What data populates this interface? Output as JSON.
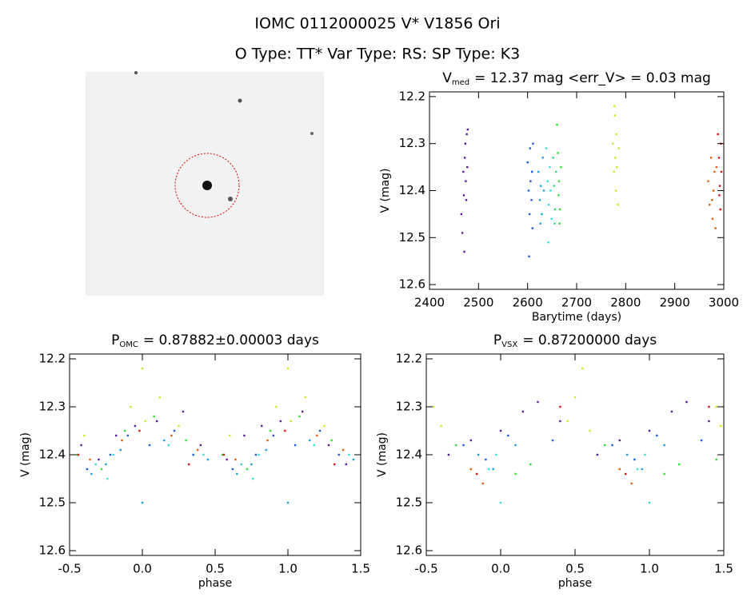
{
  "header": {
    "title": "IOMC 0112000025    V* V1856 Ori",
    "subtitle": "O Type: TT*   Var Type: RS:   SP Type: K3"
  },
  "chart_data": [
    {
      "type": "scatter",
      "title": "V",
      "title_sub": "med",
      "title_rest": "= 12.37 mag <err_V> = 0.03 mag",
      "x_label": "Barytime (days)",
      "y_label": "V (mag)",
      "xlim": [
        2400,
        3000
      ],
      "xticks": [
        2400,
        2500,
        2600,
        2700,
        2800,
        2900,
        3000
      ],
      "ylim": [
        12.61,
        12.19
      ],
      "yticks": [
        12.2,
        12.3,
        12.4,
        12.5,
        12.6
      ],
      "series": [
        {
          "color": "#5a1a9a",
          "x": [
            2465,
            2467,
            2469,
            2470,
            2472,
            2473,
            2474,
            2475,
            2476,
            2477,
            2478,
            2471
          ],
          "y": [
            12.45,
            12.49,
            12.36,
            12.41,
            12.33,
            12.3,
            12.38,
            12.42,
            12.28,
            12.35,
            12.27,
            12.53
          ]
        },
        {
          "color": "#1a5adc",
          "x": [
            2600,
            2602,
            2604,
            2605,
            2606,
            2608,
            2609,
            2610,
            2611,
            2603
          ],
          "y": [
            12.34,
            12.4,
            12.45,
            12.31,
            12.38,
            12.42,
            12.36,
            12.48,
            12.3,
            12.54
          ]
        },
        {
          "color": "#1aa0e0",
          "x": [
            2622,
            2625,
            2627,
            2629,
            2631,
            2633,
            2626
          ],
          "y": [
            12.36,
            12.42,
            12.39,
            12.45,
            12.33,
            12.4,
            12.47
          ]
        },
        {
          "color": "#30e0e0",
          "x": [
            2638,
            2641,
            2643,
            2645,
            2647,
            2649,
            2642
          ],
          "y": [
            12.31,
            12.38,
            12.43,
            12.35,
            12.4,
            12.46,
            12.51
          ]
        },
        {
          "color": "#2add80",
          "x": [
            2652,
            2654,
            2656,
            2658,
            2655
          ],
          "y": [
            12.33,
            12.39,
            12.44,
            12.36,
            12.47
          ]
        },
        {
          "color": "#30e030",
          "x": [
            2660,
            2662,
            2664,
            2666,
            2668,
            2663,
            2665
          ],
          "y": [
            12.26,
            12.32,
            12.38,
            12.44,
            12.35,
            12.41,
            12.47
          ]
        },
        {
          "color": "#c0f020",
          "x": [
            2774,
            2776,
            2778,
            2779,
            2780,
            2781,
            2782,
            2784,
            2786,
            2777
          ],
          "y": [
            12.3,
            12.36,
            12.24,
            12.33,
            12.4,
            12.28,
            12.35,
            12.43,
            12.31,
            12.22
          ]
        },
        {
          "color": "#e06010",
          "x": [
            2968,
            2971,
            2974,
            2977,
            2979,
            2981,
            2983,
            2985,
            2976
          ],
          "y": [
            12.38,
            12.43,
            12.33,
            12.46,
            12.4,
            12.36,
            12.48,
            12.35,
            12.42
          ]
        },
        {
          "color": "#e01010",
          "x": [
            2988,
            2990,
            2992,
            2993,
            2995,
            2991,
            2994
          ],
          "y": [
            12.28,
            12.33,
            12.39,
            12.44,
            12.36,
            12.41,
            12.3
          ]
        }
      ]
    },
    {
      "type": "scatter",
      "title": "P",
      "title_sub": "OMC",
      "title_rest": "= 0.87882±0.00003 days",
      "x_label": "phase",
      "y_label": "V (mag)",
      "xlim": [
        -0.5,
        1.5
      ],
      "xticks": [
        -0.5,
        {
          "value": 0,
          "label": "0.0"
        },
        0.5,
        {
          "value": 1,
          "label": "1.0"
        },
        1.5
      ],
      "ylim": [
        12.61,
        12.19
      ],
      "yticks": [
        12.2,
        12.3,
        12.4,
        12.5,
        12.6
      ],
      "series": [
        {
          "color": "#5a1a9a",
          "x": [
            -0.42,
            -0.3,
            -0.18,
            -0.05,
            0.1,
            0.28,
            0.4,
            0.58,
            0.7,
            0.82,
            0.95,
            1.1,
            1.28,
            1.4
          ],
          "y": [
            12.38,
            12.41,
            12.36,
            12.34,
            12.33,
            12.31,
            12.38,
            12.41,
            12.36,
            12.34,
            12.33,
            12.31,
            12.38,
            12.42
          ]
        },
        {
          "color": "#1a5adc",
          "x": [
            -0.38,
            -0.22,
            -0.1,
            0.05,
            0.22,
            0.35,
            0.62,
            0.78,
            0.9,
            1.05,
            1.22,
            1.35
          ],
          "y": [
            12.43,
            12.4,
            12.36,
            12.38,
            12.35,
            12.4,
            12.43,
            12.4,
            12.36,
            12.38,
            12.35,
            12.4
          ]
        },
        {
          "color": "#1aa0e0",
          "x": [
            -0.35,
            -0.25,
            -0.15,
            0.0,
            0.15,
            0.45,
            0.65,
            0.75,
            0.85,
            1.0,
            1.15,
            1.45
          ],
          "y": [
            12.44,
            12.42,
            12.39,
            12.5,
            12.37,
            12.41,
            12.44,
            12.42,
            12.39,
            12.5,
            12.37,
            12.41
          ]
        },
        {
          "color": "#30e0e0",
          "x": [
            -0.32,
            -0.24,
            -0.2,
            0.18,
            0.42,
            0.68,
            0.76,
            0.8,
            1.18,
            1.42
          ],
          "y": [
            12.42,
            12.45,
            12.4,
            12.38,
            12.4,
            12.42,
            12.45,
            12.4,
            12.38,
            12.4
          ]
        },
        {
          "color": "#30e030",
          "x": [
            -0.45,
            -0.28,
            -0.12,
            0.08,
            0.3,
            0.55,
            0.72,
            0.88,
            1.08,
            1.3
          ],
          "y": [
            12.4,
            12.43,
            12.35,
            12.32,
            12.37,
            12.4,
            12.43,
            12.35,
            12.32,
            12.37
          ]
        },
        {
          "color": "#c0f020",
          "x": [
            -0.4,
            -0.08,
            0.0,
            0.02,
            0.12,
            0.25,
            0.6,
            0.92,
            1.0,
            1.02,
            1.12,
            1.25
          ],
          "y": [
            12.36,
            12.3,
            12.22,
            12.33,
            12.28,
            12.34,
            12.36,
            12.3,
            12.22,
            12.33,
            12.28,
            12.34
          ]
        },
        {
          "color": "#e06010",
          "x": [
            -0.36,
            -0.14,
            0.2,
            0.38,
            0.64,
            0.86,
            1.2,
            1.38
          ],
          "y": [
            12.41,
            12.37,
            12.36,
            12.39,
            12.41,
            12.37,
            12.36,
            12.39
          ]
        },
        {
          "color": "#e01010",
          "x": [
            -0.44,
            -0.02,
            0.32,
            0.56,
            0.98,
            1.32
          ],
          "y": [
            12.4,
            12.35,
            12.42,
            12.4,
            12.35,
            12.42
          ]
        }
      ]
    },
    {
      "type": "scatter",
      "title": "P",
      "title_sub": "VSX",
      "title_rest": "= 0.87200000 days",
      "x_label": "phase",
      "y_label": "V (mag)",
      "xlim": [
        -0.5,
        1.5
      ],
      "xticks": [
        -0.5,
        {
          "value": 0,
          "label": "0.0"
        },
        0.5,
        {
          "value": 1,
          "label": "1.0"
        },
        1.5
      ],
      "ylim": [
        12.61,
        12.19
      ],
      "yticks": [
        12.2,
        12.3,
        12.4,
        12.5,
        12.6
      ],
      "series": [
        {
          "color": "#5a1a9a",
          "x": [
            -0.35,
            -0.2,
            0.0,
            0.15,
            0.25,
            0.4,
            0.65,
            0.8,
            1.0,
            1.15,
            1.25,
            1.4
          ],
          "y": [
            12.4,
            12.37,
            12.35,
            12.31,
            12.29,
            12.33,
            12.4,
            12.37,
            12.35,
            12.31,
            12.29,
            12.33
          ]
        },
        {
          "color": "#1a5adc",
          "x": [
            -0.25,
            -0.1,
            0.05,
            0.35,
            0.75,
            0.9,
            1.05,
            1.35
          ],
          "y": [
            12.38,
            12.41,
            12.36,
            12.37,
            12.38,
            12.41,
            12.36,
            12.37
          ]
        },
        {
          "color": "#1aa0e0",
          "x": [
            -0.15,
            -0.05,
            0.1,
            0.85,
            0.95,
            1.1
          ],
          "y": [
            12.4,
            12.43,
            12.38,
            12.4,
            12.43,
            12.38
          ]
        },
        {
          "color": "#30e0e0",
          "x": [
            -0.08,
            -0.03,
            0.0,
            0.92,
            0.97,
            1.0
          ],
          "y": [
            12.43,
            12.4,
            12.5,
            12.43,
            12.4,
            12.5
          ]
        },
        {
          "color": "#30e030",
          "x": [
            -0.3,
            0.1,
            0.2,
            0.7,
            1.1,
            1.2,
            1.45
          ],
          "y": [
            12.38,
            12.44,
            12.42,
            12.38,
            12.44,
            12.42,
            12.41
          ]
        },
        {
          "color": "#c0f020",
          "x": [
            -0.45,
            -0.4,
            0.45,
            0.5,
            0.55,
            0.6,
            1.45,
            1.48
          ],
          "y": [
            12.3,
            12.34,
            12.33,
            12.28,
            12.22,
            12.35,
            12.3,
            12.34
          ]
        },
        {
          "color": "#e06010",
          "x": [
            -0.2,
            -0.12,
            0.8,
            0.88
          ],
          "y": [
            12.43,
            12.46,
            12.43,
            12.46
          ]
        },
        {
          "color": "#e01010",
          "x": [
            -0.16,
            0.4,
            0.84,
            1.4
          ],
          "y": [
            12.44,
            12.3,
            12.44,
            12.3
          ]
        }
      ]
    }
  ]
}
